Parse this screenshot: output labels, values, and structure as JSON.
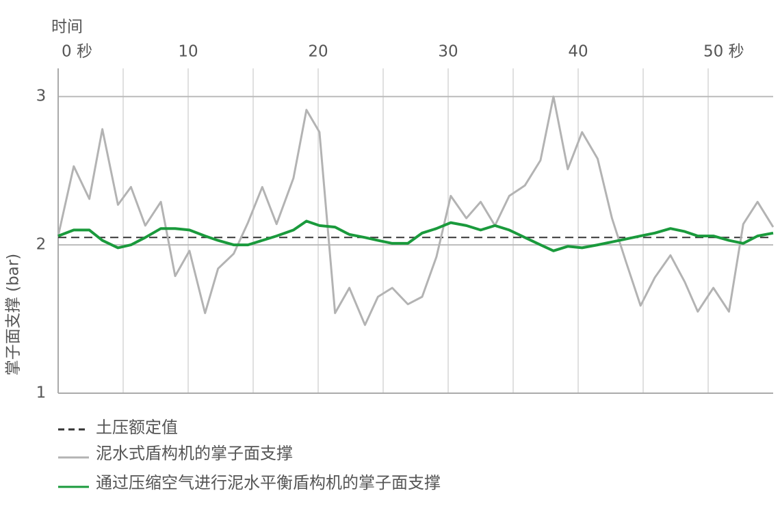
{
  "chart_data": {
    "type": "line",
    "x_label": "时间",
    "y_label": "掌子面支撑 (bar)",
    "x": [
      0,
      1.2,
      2.4,
      3.4,
      4.6,
      5.6,
      6.7,
      7.9,
      9.0,
      10.1,
      11.3,
      12.3,
      13.5,
      14.6,
      15.7,
      16.8,
      18.1,
      19.1,
      20.1,
      21.3,
      22.4,
      23.6,
      24.6,
      25.7,
      26.9,
      28.0,
      29.1,
      30.2,
      31.4,
      32.5,
      33.6,
      34.7,
      35.9,
      37.1,
      38.1,
      39.2,
      40.3,
      41.5,
      42.6,
      43.7,
      44.8,
      45.9,
      47.1,
      48.2,
      49.2,
      50.4,
      51.6,
      52.7,
      53.8,
      55.0
    ],
    "series": [
      {
        "name": "泥水式盾构机的掌子面支撑",
        "color": "#b3b3b3",
        "values": [
          2.06,
          2.53,
          2.31,
          2.78,
          2.27,
          2.39,
          2.13,
          2.29,
          1.79,
          1.96,
          1.54,
          1.84,
          1.94,
          2.15,
          2.39,
          2.14,
          2.45,
          2.91,
          2.76,
          1.54,
          1.71,
          1.46,
          1.65,
          1.71,
          1.6,
          1.65,
          1.92,
          2.33,
          2.18,
          2.29,
          2.13,
          2.33,
          2.4,
          2.57,
          3.0,
          2.51,
          2.76,
          2.58,
          2.18,
          1.88,
          1.59,
          1.78,
          1.93,
          1.75,
          1.55,
          1.71,
          1.55,
          2.14,
          2.29,
          2.12
        ]
      },
      {
        "name": "通过压缩空气进行泥水平衡盾构机的掌子面支撑",
        "color": "#1a9a3c",
        "values": [
          2.06,
          2.1,
          2.1,
          2.03,
          1.98,
          2.0,
          2.05,
          2.11,
          2.11,
          2.1,
          2.06,
          2.03,
          2.0,
          2.0,
          2.03,
          2.06,
          2.1,
          2.16,
          2.13,
          2.12,
          2.07,
          2.05,
          2.03,
          2.01,
          2.01,
          2.08,
          2.11,
          2.15,
          2.13,
          2.1,
          2.13,
          2.1,
          2.05,
          2.0,
          1.96,
          1.99,
          1.98,
          2.0,
          2.02,
          2.04,
          2.06,
          2.08,
          2.11,
          2.09,
          2.06,
          2.06,
          2.03,
          2.01,
          2.06,
          2.08
        ]
      }
    ],
    "reference": {
      "name": "土压额定值",
      "value": 2.05,
      "color": "#333333"
    },
    "xlim": [
      0,
      55
    ],
    "xticks": [
      {
        "value": 0,
        "label": "0 秒"
      },
      {
        "value": 5
      },
      10,
      {
        "value": 15
      },
      20,
      {
        "value": 25
      },
      30,
      {
        "value": 35
      },
      40,
      {
        "value": 45
      },
      {
        "value": 50,
        "label": "50 秒"
      }
    ],
    "ylim": [
      1,
      3.19
    ],
    "yticks": [
      1,
      2,
      3
    ],
    "grid": true
  }
}
